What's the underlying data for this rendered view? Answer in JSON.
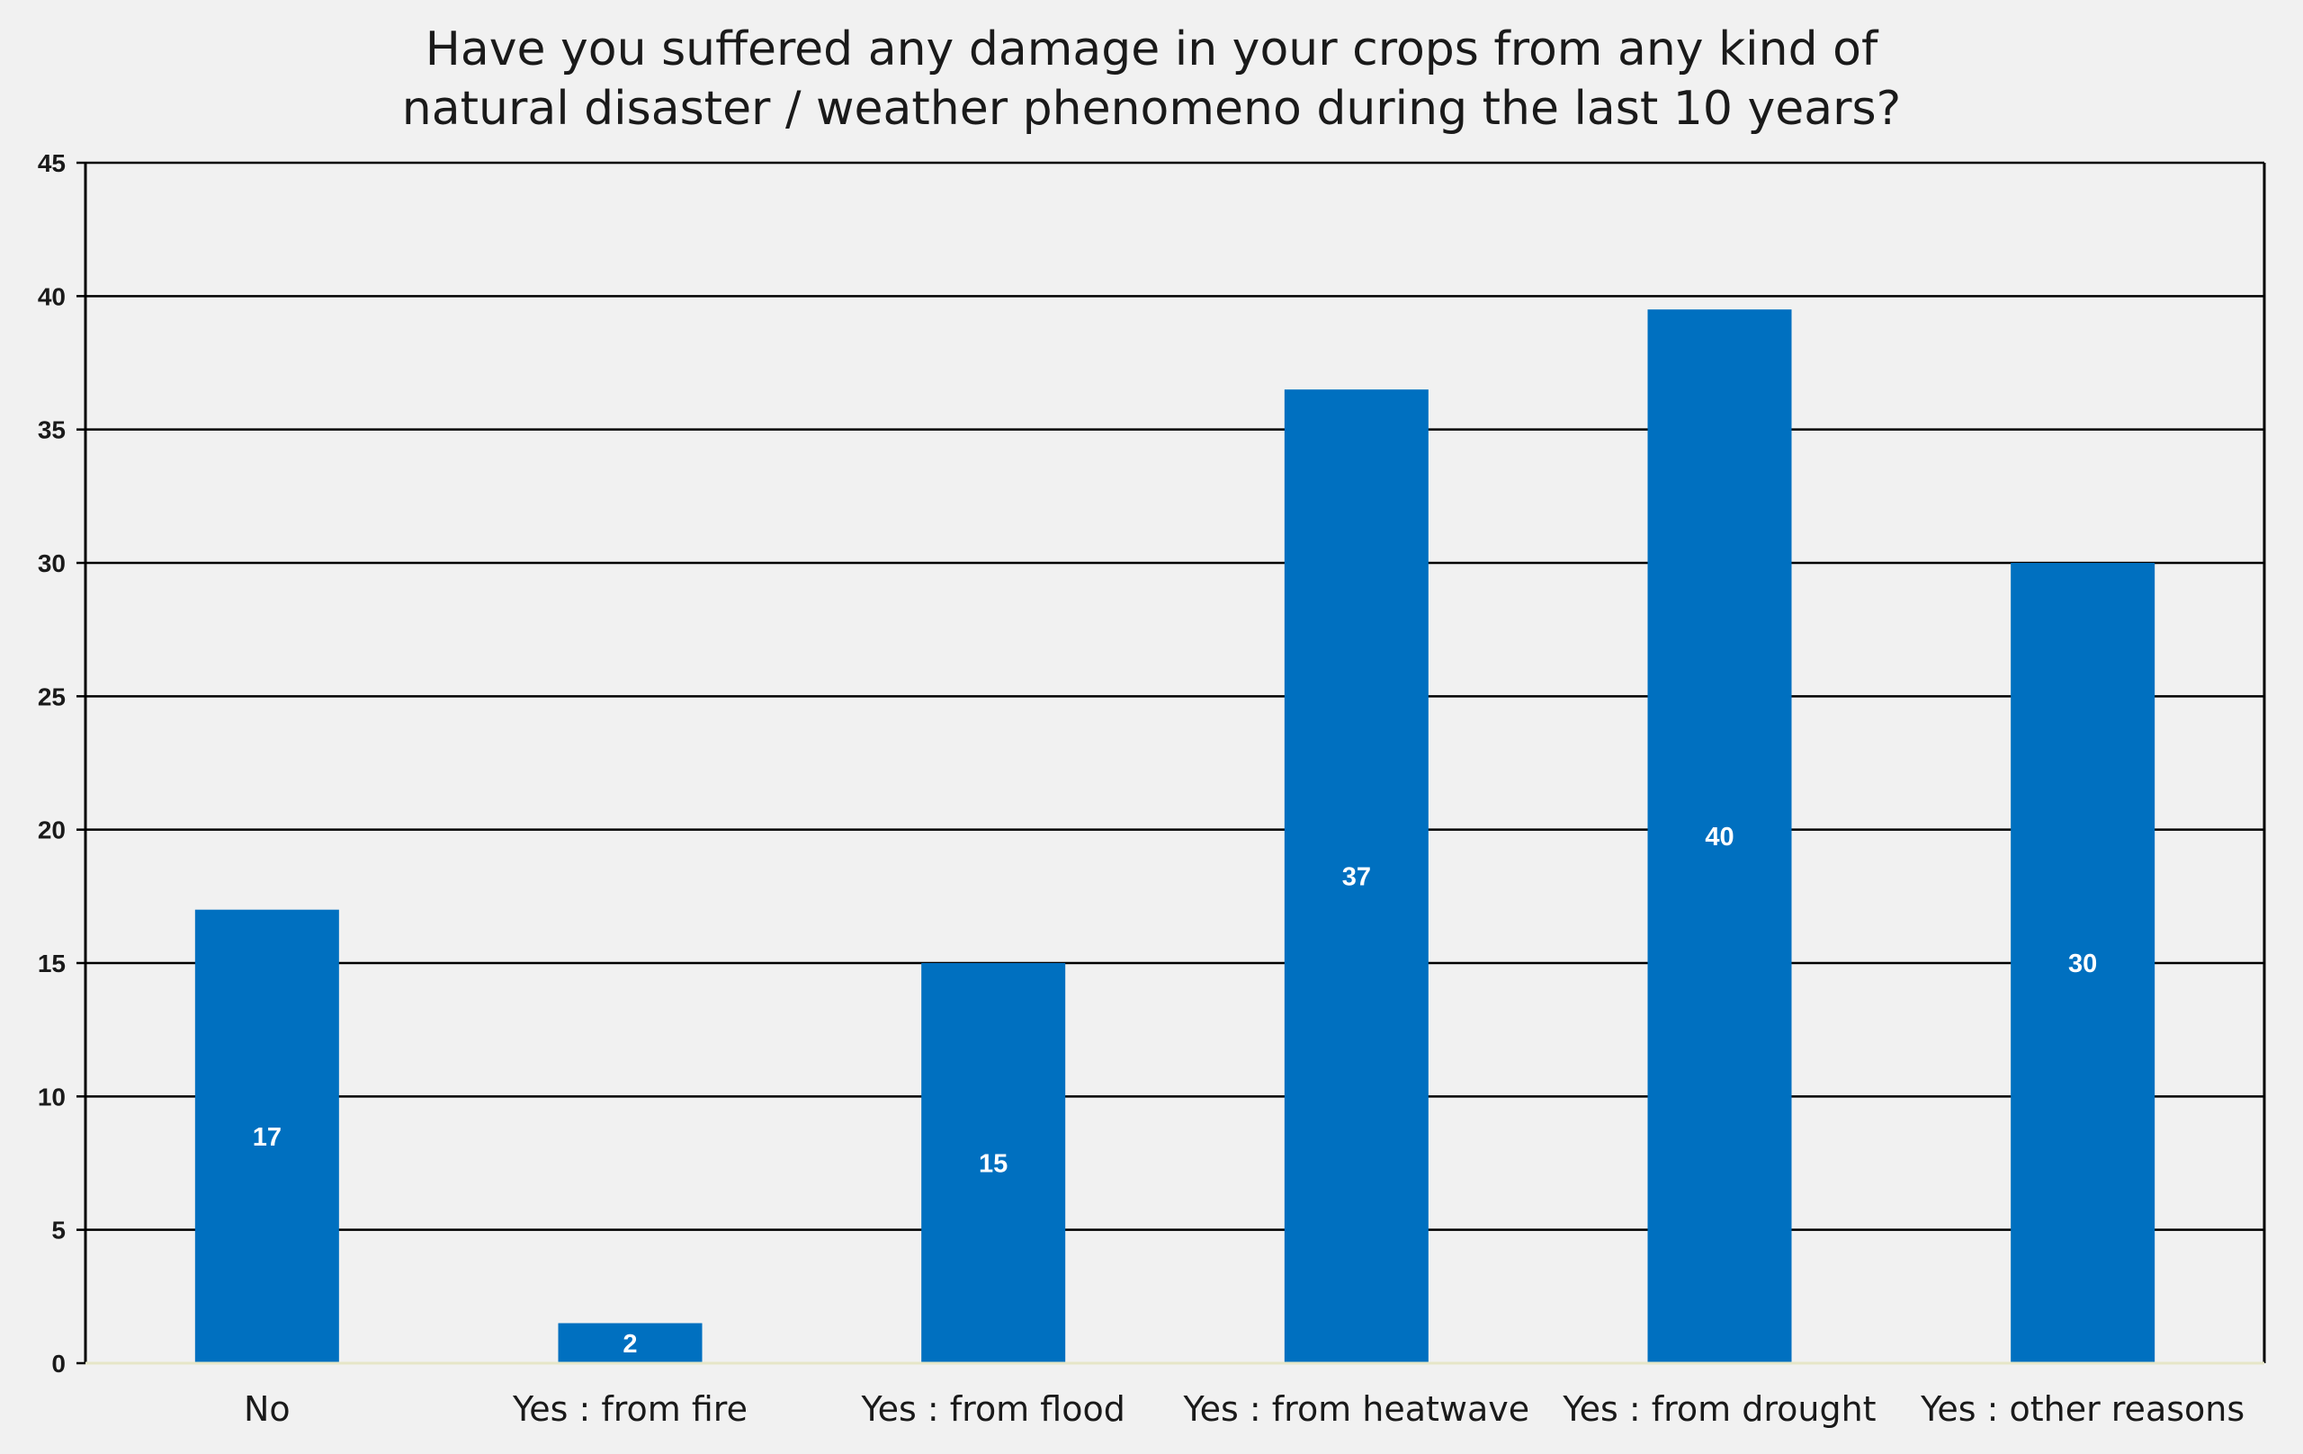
{
  "chart_data": {
    "type": "bar",
    "title": "Have you suffered any damage in your crops from any kind of natural disaster / weather phenomeno during the last 10 years?",
    "title_lines": [
      "Have you suffered any damage in your crops from any kind of",
      "natural disaster / weather phenomeno during the last 10 years?"
    ],
    "categories": [
      "No",
      "Yes : from fire",
      "Yes : from flood",
      "Yes : from heatwave",
      "Yes : from drought",
      "Yes : other reasons"
    ],
    "values": [
      17,
      1.5,
      15,
      36.5,
      39.5,
      30
    ],
    "data_labels": [
      "17",
      "2",
      "15",
      "37",
      "40",
      "30"
    ],
    "xlabel": "",
    "ylabel": "",
    "ylim": [
      0,
      45
    ],
    "yticks": [
      0,
      5,
      10,
      15,
      20,
      25,
      30,
      35,
      40,
      45
    ],
    "grid": true,
    "legend": "none",
    "bar_color": "#0070c0"
  }
}
